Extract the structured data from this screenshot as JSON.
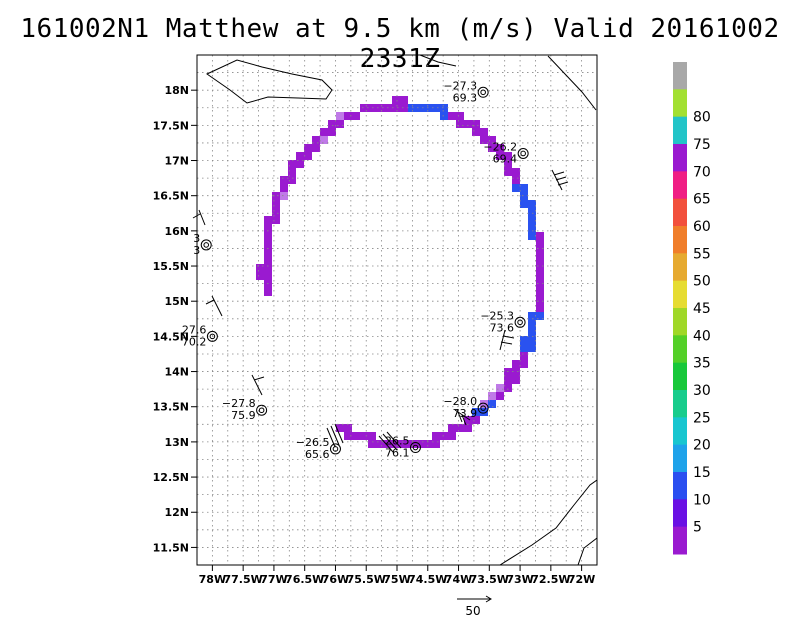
{
  "title": "161002N1 Matthew at 9.5 km (m/s) Valid 20161002 2331Z",
  "map": {
    "lon_range": [
      -78.25,
      -71.75
    ],
    "lat_range": [
      11.25,
      18.5
    ],
    "lat_ticks": [
      "11.5N",
      "12N",
      "12.5N",
      "13N",
      "13.5N",
      "14N",
      "14.5N",
      "15N",
      "15.5N",
      "16N",
      "16.5N",
      "17N",
      "17.5N",
      "18N"
    ],
    "lon_ticks": [
      "78W",
      "77.5W",
      "77W",
      "76.5W",
      "76W",
      "75.5W",
      "75W",
      "74.5W",
      "74W",
      "73.5W",
      "73W",
      "72.5W",
      "72W"
    ],
    "grid": "dotted",
    "wind_vector_scale_label": "50"
  },
  "dropsondes": [
    {
      "lon": -73.6,
      "lat": 17.97,
      "t": "−27.3",
      "v": "69.3"
    },
    {
      "lon": -72.95,
      "lat": 17.1,
      "t": "−26.2",
      "v": "69.4"
    },
    {
      "lon": -78.1,
      "lat": 15.8,
      "t": "3",
      "v": "3"
    },
    {
      "lon": -78.0,
      "lat": 14.5,
      "t": "27.6",
      "v": "70.2"
    },
    {
      "lon": -73.0,
      "lat": 14.7,
      "t": "−25.3",
      "v": "73.6"
    },
    {
      "lon": -77.2,
      "lat": 13.45,
      "t": "−27.8",
      "v": "75.9"
    },
    {
      "lon": -73.6,
      "lat": 13.48,
      "t": "−28.0",
      "v": "73.9"
    },
    {
      "lon": -76.0,
      "lat": 12.9,
      "t": "−26.5",
      "v": "65.6"
    },
    {
      "lon": -74.7,
      "lat": 12.92,
      "t": "26.5",
      "v": "76.1"
    }
  ],
  "colorbar": {
    "labels": [
      "5",
      "10",
      "15",
      "20",
      "25",
      "30",
      "35",
      "40",
      "45",
      "50",
      "55",
      "60",
      "65",
      "70",
      "75",
      "80"
    ],
    "colors": [
      "#9a1ad0",
      "#6a10e4",
      "#2a4ff0",
      "#1ea2ea",
      "#18c6d0",
      "#18cc8c",
      "#18c83a",
      "#54d028",
      "#a0d828",
      "#e6dc32",
      "#e6aa30",
      "#f07e2a",
      "#f2503c",
      "#f01e84",
      "#9a1ad0",
      "#22c4c8",
      "#a2e032",
      "#a8a8a8"
    ]
  },
  "swath_colors": {
    "purple": "#9a1ad0",
    "blue": "#2a52f0",
    "lavender": "#c07ae8"
  }
}
